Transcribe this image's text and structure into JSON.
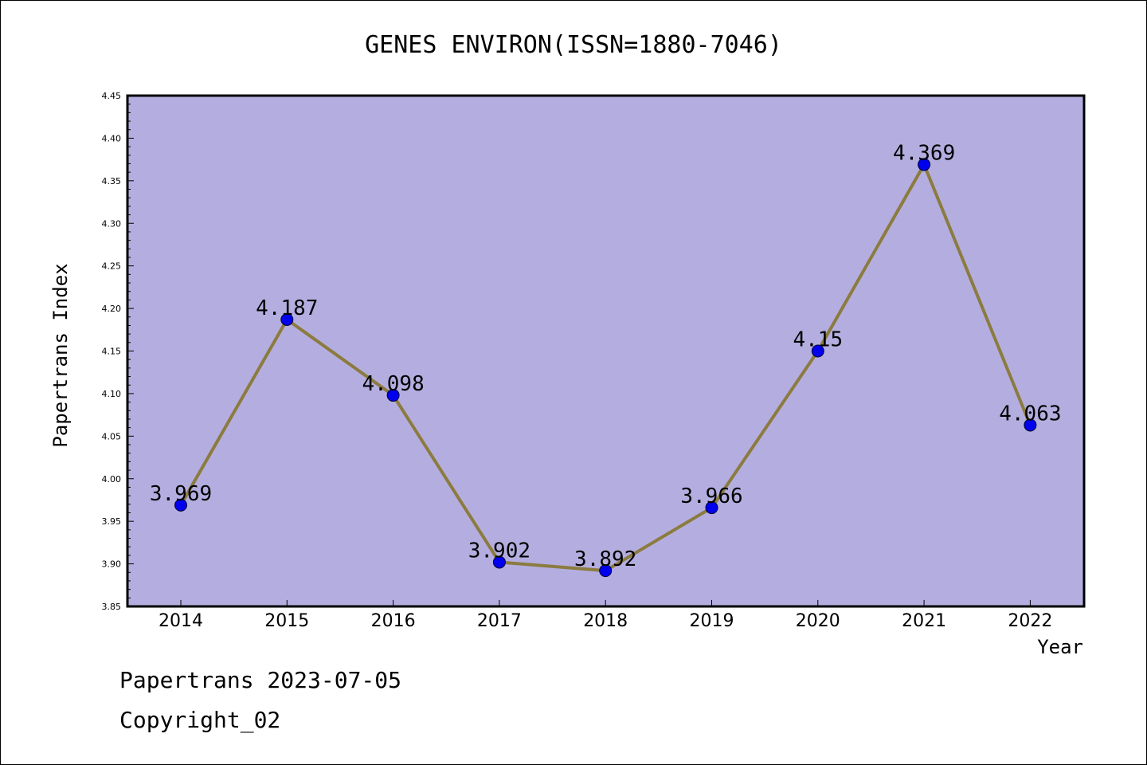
{
  "chart_data": {
    "type": "line",
    "title": "GENES ENVIRON(ISSN=1880-7046)",
    "xlabel": "Year",
    "ylabel": "Papertrans Index",
    "categories": [
      "2014",
      "2015",
      "2016",
      "2017",
      "2018",
      "2019",
      "2020",
      "2021",
      "2022"
    ],
    "series": [
      {
        "values": [
          3.969,
          4.187,
          4.098,
          3.902,
          3.892,
          3.966,
          4.15,
          4.369,
          4.063
        ],
        "data_labels": [
          "3.969",
          "4.187",
          "4.098",
          "3.902",
          "3.892",
          "3.966",
          "4.15",
          "4.369",
          "4.063"
        ],
        "line_color": "#8b7b3f",
        "marker_color": "#0000ee"
      }
    ],
    "ylim": [
      3.85,
      4.45
    ],
    "yticks": [
      "3.85",
      "3.90",
      "3.95",
      "4.00",
      "4.05",
      "4.10",
      "4.15",
      "4.20",
      "4.25",
      "4.30",
      "4.35",
      "4.40",
      "4.45"
    ],
    "plot_background": "#b4aee0",
    "grid": false,
    "legend": "none"
  },
  "footer": {
    "line1": "Papertrans 2023-07-05",
    "line2": "Copyright_02"
  }
}
